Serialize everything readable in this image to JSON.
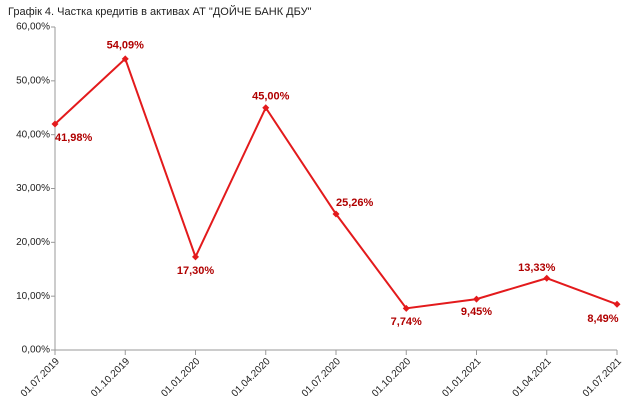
{
  "chart_data": {
    "type": "line",
    "title": "Графік 4. Частка кредитів в активах АТ \"ДОЙЧЕ БАНК ДБУ\"",
    "categories": [
      "01.07.2019",
      "01.10.2019",
      "01.01.2020",
      "01.04.2020",
      "01.07.2020",
      "01.10.2020",
      "01.01.2021",
      "01.04.2021",
      "01.07.2021"
    ],
    "series": [
      {
        "name": "Частка кредитів",
        "color": "#e31a1c",
        "values": [
          41.98,
          54.09,
          17.3,
          45.0,
          25.26,
          7.74,
          9.45,
          13.33,
          8.49
        ],
        "value_labels": [
          "41,98%",
          "54,09%",
          "17,30%",
          "45,00%",
          "25,26%",
          "7,74%",
          "9,45%",
          "13,33%",
          "8,49%"
        ]
      }
    ],
    "ylim": [
      0,
      60
    ],
    "yticks": [
      {
        "value": 0,
        "label": "0,00%"
      },
      {
        "value": 10,
        "label": "10,00%"
      },
      {
        "value": 20,
        "label": "20,00%"
      },
      {
        "value": 30,
        "label": "30,00%"
      },
      {
        "value": 40,
        "label": "40,00%"
      },
      {
        "value": 50,
        "label": "50,00%"
      },
      {
        "value": 60,
        "label": "60,00%"
      }
    ],
    "grid": false
  }
}
